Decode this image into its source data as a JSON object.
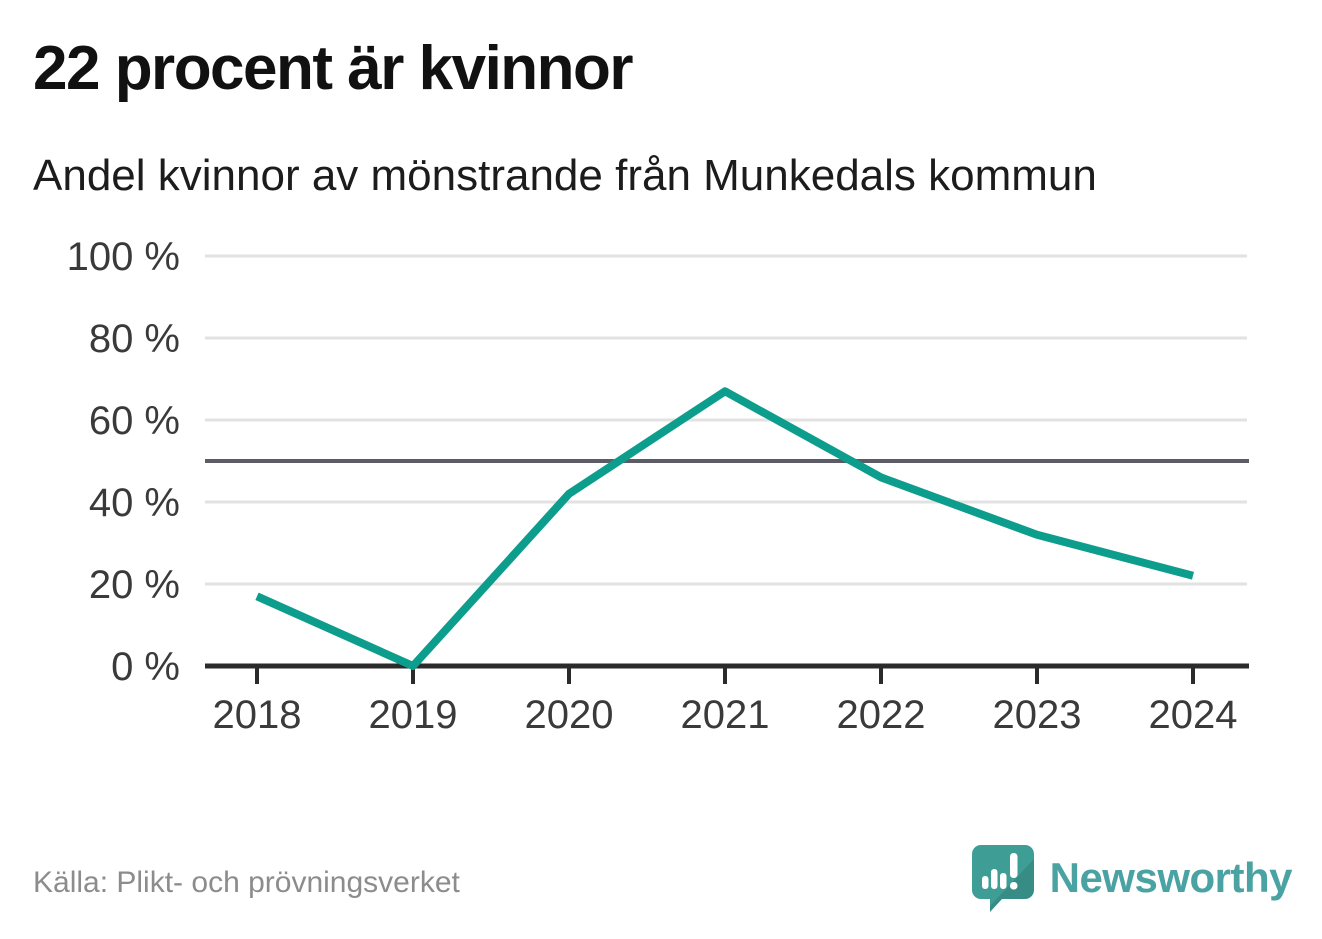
{
  "header": {
    "title": "22 procent är kvinnor",
    "subtitle": "Andel kvinnor av mönstrande från Munkedals kommun"
  },
  "chart_data": {
    "type": "line",
    "title": "22 procent är kvinnor",
    "subtitle": "Andel kvinnor av mönstrande från Munkedals kommun",
    "x": [
      2018,
      2019,
      2020,
      2021,
      2022,
      2023,
      2024
    ],
    "x_tick_labels": [
      "2018",
      "2019",
      "2020",
      "2021",
      "2022",
      "2023",
      "2024"
    ],
    "series": [
      {
        "name": "Andel kvinnor av mönstrande",
        "values": [
          17,
          0,
          42,
          67,
          46,
          32,
          22
        ]
      }
    ],
    "values": [
      17,
      0,
      42,
      67,
      46,
      32,
      22
    ],
    "unit": "%",
    "ylim": [
      0,
      100
    ],
    "y_ticks": [
      0,
      20,
      40,
      60,
      80,
      100
    ],
    "y_tick_labels": [
      "0 %",
      "20 %",
      "40 %",
      "60 %",
      "80 %",
      "100 %"
    ],
    "reference_line": {
      "value": 50
    },
    "grid": "horizontal",
    "legend_position": "none",
    "line_color": "#0d9d8d"
  },
  "footer": {
    "source": "Källa: Plikt- och prövningsverket",
    "brand": "Newsworthy"
  },
  "colors": {
    "accent": "#0d9d8d",
    "reference_line": "#5c5c66",
    "gridline": "#e2e2e2",
    "axis": "#2b2b2b",
    "logo_bubble": "#3e9d95",
    "wordmark": "#4aa2a2",
    "title_text": "#111111",
    "muted_text": "#8c8c8c"
  }
}
